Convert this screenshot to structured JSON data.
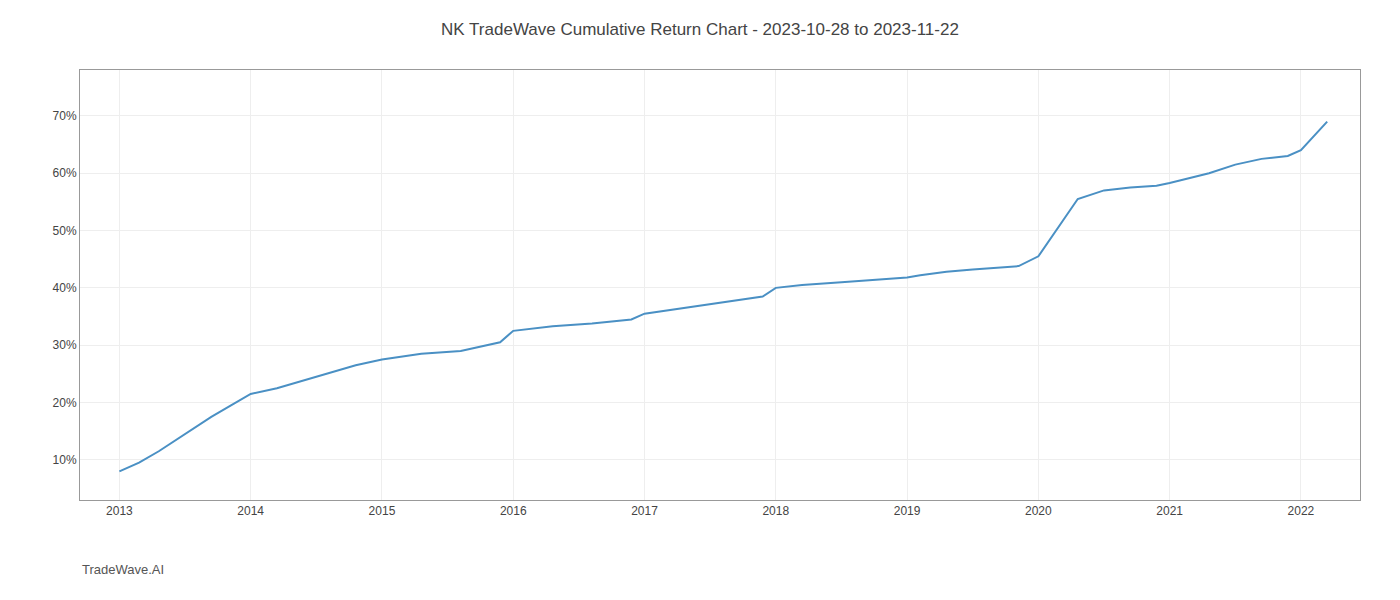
{
  "chart_data": {
    "type": "line",
    "title": "NK TradeWave Cumulative Return Chart - 2023-10-28 to 2023-11-22",
    "annotations": [
      "TradeWave.AI"
    ],
    "x": [
      2013.0,
      2013.15,
      2013.3,
      2013.5,
      2013.7,
      2013.85,
      2014.0,
      2014.2,
      2014.5,
      2014.8,
      2015.0,
      2015.3,
      2015.6,
      2015.9,
      2016.0,
      2016.3,
      2016.6,
      2016.9,
      2017.0,
      2017.3,
      2017.6,
      2017.9,
      2018.0,
      2018.2,
      2018.5,
      2018.8,
      2019.0,
      2019.1,
      2019.3,
      2019.5,
      2019.7,
      2019.85,
      2020.0,
      2020.3,
      2020.5,
      2020.7,
      2020.9,
      2021.0,
      2021.3,
      2021.5,
      2021.7,
      2021.9,
      2022.0,
      2022.2
    ],
    "values": [
      0.08,
      0.095,
      0.115,
      0.145,
      0.175,
      0.195,
      0.215,
      0.225,
      0.245,
      0.265,
      0.275,
      0.285,
      0.29,
      0.305,
      0.325,
      0.333,
      0.338,
      0.345,
      0.355,
      0.365,
      0.375,
      0.385,
      0.4,
      0.405,
      0.41,
      0.415,
      0.418,
      0.422,
      0.428,
      0.432,
      0.436,
      0.438,
      0.455,
      0.555,
      0.57,
      0.575,
      0.578,
      0.583,
      0.6,
      0.615,
      0.625,
      0.63,
      0.64,
      0.69
    ],
    "color": "#4a90c4",
    "xlim": [
      2012.7,
      2022.45
    ],
    "xticks": [
      2013,
      2014,
      2015,
      2016,
      2017,
      2018,
      2019,
      2020,
      2021,
      2022
    ],
    "ylim": [
      0.03,
      0.78
    ],
    "yticks": [
      {
        "value": 0.1,
        "label": "10%"
      },
      {
        "value": 0.2,
        "label": "20%"
      },
      {
        "value": 0.3,
        "label": "30%"
      },
      {
        "value": 0.4,
        "label": "40%"
      },
      {
        "value": 0.5,
        "label": "50%"
      },
      {
        "value": 0.6,
        "label": "60%"
      },
      {
        "value": 0.7,
        "label": "70%"
      }
    ],
    "grid": true
  }
}
